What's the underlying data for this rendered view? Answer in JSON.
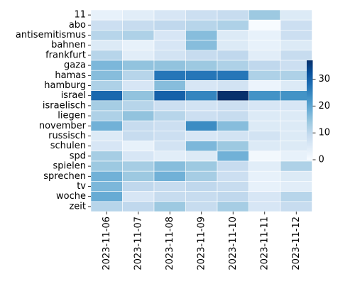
{
  "chart_data": {
    "type": "heatmap",
    "title": "",
    "xlabel": "",
    "ylabel": "",
    "x_categories": [
      "2023-11-06",
      "2023-11-07",
      "2023-11-08",
      "2023-11-09",
      "2023-11-10",
      "2023-11-11",
      "2023-11-12"
    ],
    "y_categories": [
      "11",
      "abo",
      "antisemitismus",
      "bahnen",
      "frankfurt",
      "gaza",
      "hamas",
      "hamburg",
      "israel",
      "israelisch",
      "liegen",
      "november",
      "russisch",
      "schulen",
      "spd",
      "spielen",
      "sprechen",
      "tv",
      "woche",
      "zeit"
    ],
    "values": [
      [
        3,
        4,
        6,
        8,
        9,
        14,
        5
      ],
      [
        8,
        9,
        10,
        11,
        12,
        0,
        8
      ],
      [
        11,
        12,
        6,
        16,
        5,
        3,
        8
      ],
      [
        5,
        3,
        6,
        16,
        5,
        3,
        5
      ],
      [
        11,
        4,
        7,
        9,
        10,
        4,
        9
      ],
      [
        17,
        15,
        15,
        14,
        12,
        10,
        8
      ],
      [
        16,
        11,
        27,
        27,
        27,
        12,
        12
      ],
      [
        12,
        6,
        16,
        6,
        7,
        2,
        5
      ],
      [
        29,
        15,
        30,
        25,
        37,
        23,
        23
      ],
      [
        13,
        11,
        8,
        7,
        8,
        6,
        6
      ],
      [
        12,
        15,
        11,
        8,
        9,
        5,
        5
      ],
      [
        18,
        9,
        8,
        24,
        16,
        5,
        5
      ],
      [
        5,
        9,
        8,
        6,
        7,
        7,
        5
      ],
      [
        6,
        3,
        7,
        17,
        14,
        5,
        5
      ],
      [
        13,
        6,
        4,
        5,
        18,
        1,
        3
      ],
      [
        14,
        13,
        16,
        14,
        9,
        4,
        12
      ],
      [
        18,
        14,
        18,
        13,
        8,
        3,
        5
      ],
      [
        17,
        10,
        9,
        10,
        9,
        3,
        4
      ],
      [
        19,
        6,
        9,
        9,
        10,
        6,
        11
      ],
      [
        11,
        10,
        14,
        9,
        13,
        6,
        9
      ]
    ],
    "colorbar": {
      "min": 0,
      "max": 37,
      "ticks": [
        0,
        10,
        20,
        30
      ]
    },
    "colormap": [
      "#f7fbff",
      "#deebf7",
      "#c6dbef",
      "#9ecae1",
      "#6baed6",
      "#4292c6",
      "#2171b5",
      "#08519c",
      "#08306b"
    ],
    "grid": true,
    "legend": "right colorbar"
  }
}
